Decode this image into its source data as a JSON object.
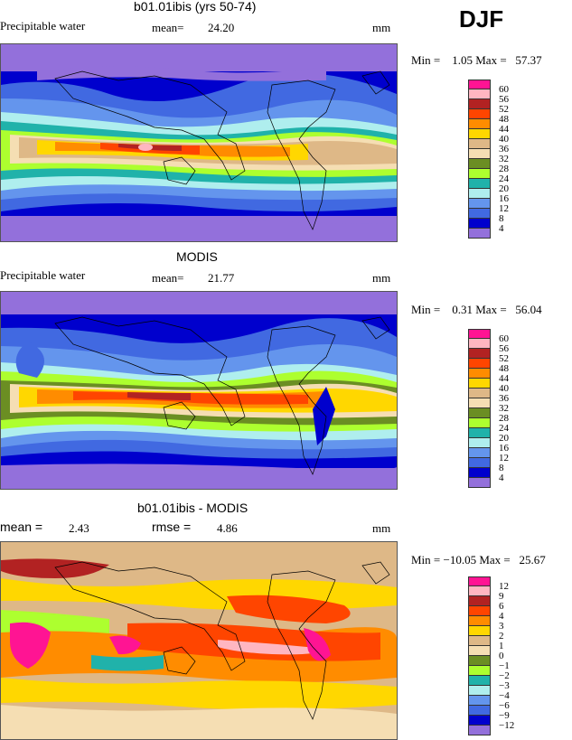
{
  "season": "DJF",
  "panels": [
    {
      "title": "b01.01ibis (yrs 50-74)",
      "var_label": "Precipitable water",
      "stat1_label": "mean=",
      "stat1_value": "24.20",
      "units": "mm",
      "minmax": "Min =    1.05 Max =   57.37",
      "legend_labels": [
        "60",
        "56",
        "52",
        "48",
        "44",
        "40",
        "36",
        "32",
        "28",
        "24",
        "20",
        "16",
        "12",
        "8",
        "4"
      ]
    },
    {
      "title": "MODIS",
      "var_label": "Precipitable water",
      "stat1_label": "mean=",
      "stat1_value": "21.77",
      "units": "mm",
      "minmax": "Min =    0.31 Max =   56.04",
      "legend_labels": [
        "60",
        "56",
        "52",
        "48",
        "44",
        "40",
        "36",
        "32",
        "28",
        "24",
        "20",
        "16",
        "12",
        "8",
        "4"
      ]
    },
    {
      "title": "b01.01ibis - MODIS",
      "stat1_label": "mean =",
      "stat1_value": "2.43",
      "stat2_label": "rmse =",
      "stat2_value": "4.86",
      "units": "mm",
      "minmax": "Min = −10.05 Max =   25.67",
      "legend_labels": [
        "12",
        "9",
        "6",
        "4",
        "3",
        "2",
        "1",
        "0",
        "−1",
        "−2",
        "−3",
        "−4",
        "−6",
        "−9",
        "−12"
      ]
    }
  ],
  "colors": {
    "abs_scale": [
      "#ff1493",
      "#ffb6c1",
      "#b22222",
      "#ff4500",
      "#ff8c00",
      "#ffd700",
      "#deb887",
      "#f5deb3",
      "#6b8e23",
      "#adff2f",
      "#20b2aa",
      "#afeeee",
      "#6495ed",
      "#4169e1",
      "#0000cd",
      "#9370db"
    ],
    "diff_scale": [
      "#ff1493",
      "#ffb6c1",
      "#b22222",
      "#ff4500",
      "#ff8c00",
      "#ffd700",
      "#deb887",
      "#f5deb3",
      "#6b8e23",
      "#adff2f",
      "#20b2aa",
      "#afeeee",
      "#6495ed",
      "#4169e1",
      "#0000cd",
      "#9370db"
    ]
  }
}
